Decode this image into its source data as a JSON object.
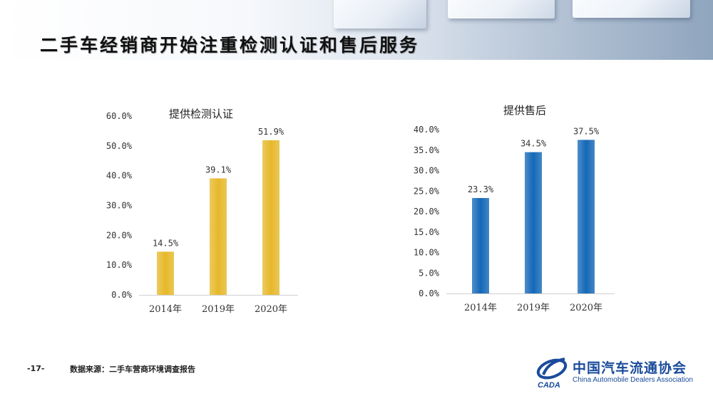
{
  "page": {
    "title": "二手车经销商开始注重检测认证和售后服务",
    "page_number": "-17-",
    "source": "数据来源：二手车营商环境调查报告",
    "logo": {
      "cn": "中国汽车流通协会",
      "en": "China Automobile Dealers Association",
      "abbr": "CADA"
    }
  },
  "chart_data": [
    {
      "type": "bar",
      "title": "提供检测认证",
      "categories": [
        "2014年",
        "2019年",
        "2020年"
      ],
      "values": [
        14.5,
        39.1,
        51.9
      ],
      "value_labels": [
        "14.5%",
        "39.1%",
        "51.9%"
      ],
      "ylim": [
        0,
        60
      ],
      "yticks": [
        "0.0%",
        "10.0%",
        "20.0%",
        "30.0%",
        "40.0%",
        "50.0%",
        "60.0%"
      ],
      "color": "#e6b82a",
      "grid": false
    },
    {
      "type": "bar",
      "title": "提供售后",
      "categories": [
        "2014年",
        "2019年",
        "2020年"
      ],
      "values": [
        23.3,
        34.5,
        37.5
      ],
      "value_labels": [
        "23.3%",
        "34.5%",
        "37.5%"
      ],
      "ylim": [
        0,
        40
      ],
      "yticks": [
        "0.0%",
        "5.0%",
        "10.0%",
        "15.0%",
        "20.0%",
        "25.0%",
        "30.0%",
        "35.0%",
        "40.0%"
      ],
      "color": "#1468b8",
      "grid": false
    }
  ]
}
